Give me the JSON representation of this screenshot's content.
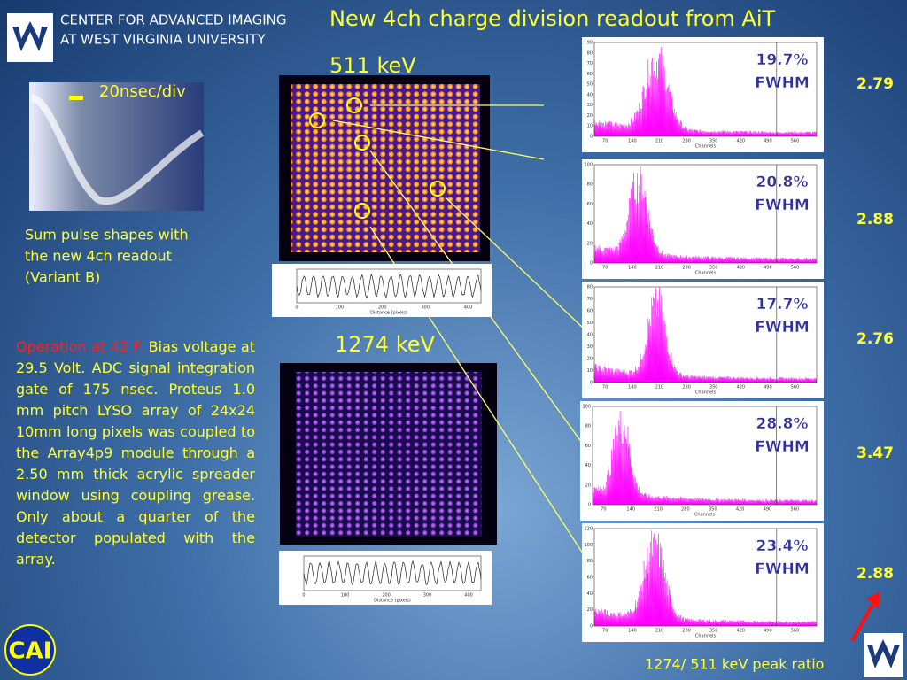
{
  "header": {
    "org_lines": [
      "CENTER FOR ADVANCED IMAGING",
      "AT WEST VIRGINIA UNIVERSITY"
    ],
    "title": "New 4ch charge division readout from AiT"
  },
  "scope": {
    "label": "20nsec/div"
  },
  "caption_lines": [
    "Sum pulse shapes with",
    "the new 4ch readout",
    "(Variant B)"
  ],
  "description": {
    "highlight": "Operation at 42 F.",
    "text": "Bias voltage at 29.5 Volt. ADC signal integration gate of 175 nsec. Proteus 1.0 mm pitch LYSO array of 24x24 10mm long pixels was coupled to the Array4p9 module through a 2.50 mm thick acrylic spreader window using coupling grease. Only about a quarter of the detector populated with the array."
  },
  "energies": {
    "low": "511 keV",
    "high": "1274 keV"
  },
  "profile": {
    "x_ticks": [
      0,
      100,
      200,
      300,
      400
    ],
    "x_label": "Distance (pixels)"
  },
  "histogram_x_ticks": [
    70,
    140,
    210,
    280,
    350,
    420,
    490,
    560
  ],
  "histogram_x_label": "Channels",
  "fwhm_label": "FWHM",
  "histograms": [
    {
      "fwhm": "19.7%",
      "ratio": "2.79",
      "y_ticks": [
        0,
        10,
        20,
        30,
        40,
        50,
        60,
        70,
        80,
        90
      ]
    },
    {
      "fwhm": "20.8%",
      "ratio": "2.88",
      "y_ticks": [
        0,
        20,
        40,
        60,
        80,
        100
      ]
    },
    {
      "fwhm": "17.7%",
      "ratio": "2.76",
      "y_ticks": [
        0,
        10,
        20,
        30,
        40,
        50,
        60,
        70,
        80
      ]
    },
    {
      "fwhm": "28.8%",
      "ratio": "3.47",
      "y_ticks": [
        0,
        20,
        40,
        60,
        80,
        100
      ]
    },
    {
      "fwhm": "23.4%",
      "ratio": "2.88",
      "y_ticks": [
        0,
        20,
        40,
        60,
        80,
        100,
        120
      ]
    }
  ],
  "footer": "1274/ 511 keV peak ratio"
}
